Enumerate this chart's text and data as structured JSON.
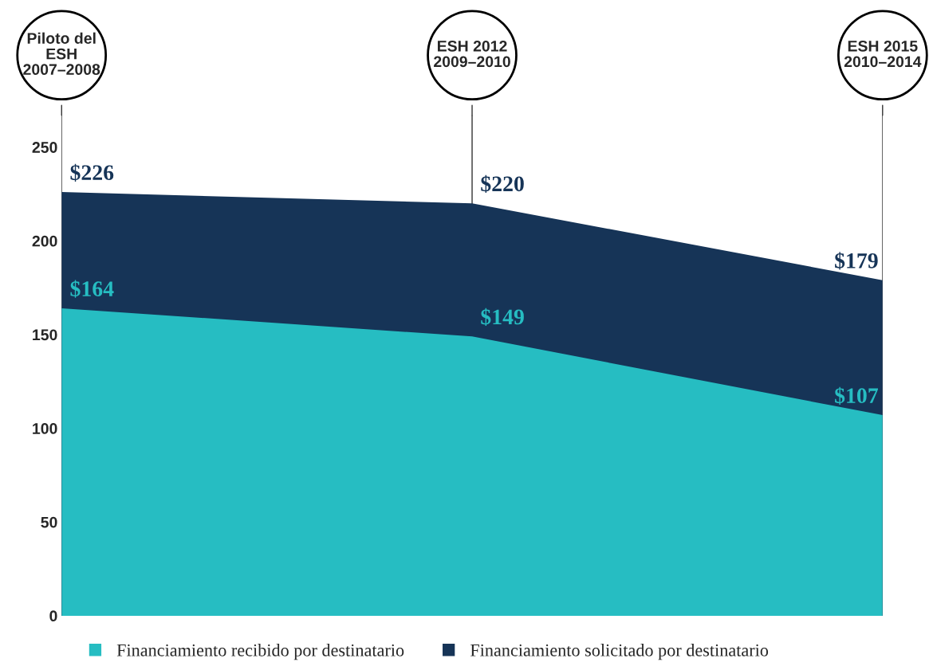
{
  "chart_data": {
    "type": "area",
    "categories": [
      "Piloto del\nESH\n2007–2008",
      "ESH 2012\n2009–2010",
      "ESH 2015\n2010–2014"
    ],
    "series": [
      {
        "name": "Financiamiento recibido por destinatario",
        "color": "#26bdc2",
        "values": [
          164,
          149,
          107
        ],
        "value_labels": [
          "$164",
          "$149",
          "$107"
        ]
      },
      {
        "name": "Financiamiento solicitado por destinatario",
        "color": "#163457",
        "values": [
          226,
          220,
          179
        ],
        "value_labels": [
          "$226",
          "$220",
          "$179"
        ]
      }
    ],
    "ylim": [
      0,
      267
    ],
    "yticks": [
      0,
      50,
      100,
      150,
      200,
      250
    ],
    "grid": "x",
    "legend": "bottom",
    "tick_labels": "y"
  }
}
